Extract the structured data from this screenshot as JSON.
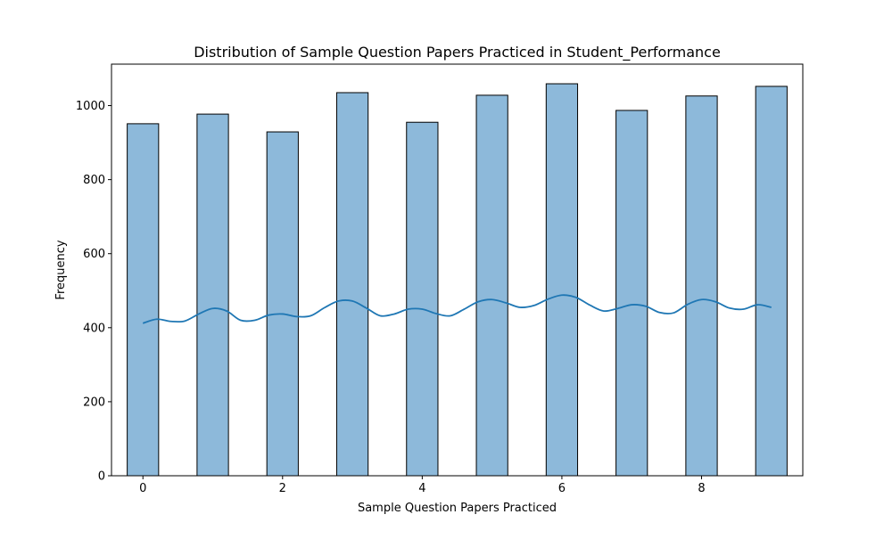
{
  "chart_data": {
    "type": "bar",
    "title": "Distribution of Sample Question Papers Practiced in Student_Performance",
    "xlabel": "Sample Question Papers Practiced",
    "ylabel": "Frequency",
    "categories": [
      "0",
      "1",
      "2",
      "3",
      "4",
      "5",
      "6",
      "7",
      "8",
      "9"
    ],
    "values": [
      951,
      977,
      929,
      1035,
      955,
      1028,
      1059,
      987,
      1026,
      1052
    ],
    "bar_x": [
      0,
      1,
      2,
      3,
      4,
      5,
      6,
      7,
      8,
      9
    ],
    "bar_width": 0.45,
    "xlim": [
      -0.45,
      9.45
    ],
    "ylim": [
      0,
      1112
    ],
    "x_ticks": [
      0,
      2,
      4,
      6,
      8
    ],
    "y_ticks": [
      0,
      200,
      400,
      600,
      800,
      1000
    ],
    "grid": false,
    "kde": {
      "x": [
        0.0,
        0.2,
        0.4,
        0.6,
        0.8,
        1.0,
        1.2,
        1.4,
        1.6,
        1.8,
        2.0,
        2.2,
        2.4,
        2.6,
        2.8,
        3.0,
        3.2,
        3.4,
        3.6,
        3.8,
        4.0,
        4.2,
        4.4,
        4.6,
        4.8,
        5.0,
        5.2,
        5.4,
        5.6,
        5.8,
        6.0,
        6.2,
        6.4,
        6.6,
        6.8,
        7.0,
        7.2,
        7.4,
        7.6,
        7.8,
        8.0,
        8.2,
        8.4,
        8.6,
        8.8,
        9.0
      ],
      "y": [
        412,
        423,
        417,
        418,
        437,
        452,
        445,
        420,
        420,
        434,
        437,
        430,
        432,
        454,
        472,
        472,
        453,
        432,
        437,
        450,
        450,
        438,
        432,
        450,
        470,
        476,
        467,
        455,
        460,
        477,
        488,
        482,
        461,
        445,
        452,
        462,
        458,
        441,
        440,
        463,
        476,
        470,
        453,
        450,
        462,
        455
      ]
    },
    "colors": {
      "bar_fill": "#8db9da",
      "bar_edge": "#000000",
      "kde_line": "#1f77b4"
    }
  }
}
